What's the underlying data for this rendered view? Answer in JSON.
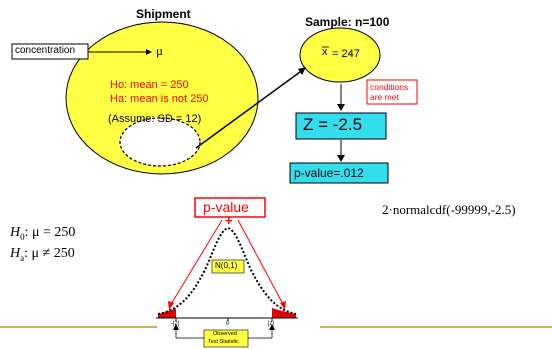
{
  "shipment": {
    "title": "Shipment",
    "param_symbol": "μ",
    "concentration_label": "concentration",
    "h0": "Ho:  mean = 250",
    "ha": "Ha:  mean is not 250",
    "assume": "(Assume: SD = 12)"
  },
  "sample": {
    "title": "Sample: n=100",
    "xbar_symbol": "x",
    "xbar_value": "= 247",
    "conditions_line1": "conditions",
    "conditions_line2": "are met",
    "z_text": "Z = -2.5",
    "pvalue_text": "p-value=.012"
  },
  "formula": "2·normalcdf(-99999,-2.5)",
  "hypotheses": {
    "h0_label": "H",
    "h0_sub": "0",
    "h0_rest": ":   μ = 250",
    "ha_label": "H",
    "ha_sub": "a",
    "ha_rest": ":   μ ≠ 250"
  },
  "curve": {
    "pvalue_label": "p-value",
    "plus": "+",
    "dist_label": "N(0,1)",
    "left_tick": "-|z|",
    "center_tick": "0",
    "right_tick": "|z|",
    "observed_line1": "Observed",
    "observed_line2": "Test Statistic"
  },
  "colors": {
    "yellow": "#ffff44",
    "red": "#ff0000",
    "cyan": "#33ddee",
    "gold": "#c8a24a"
  }
}
